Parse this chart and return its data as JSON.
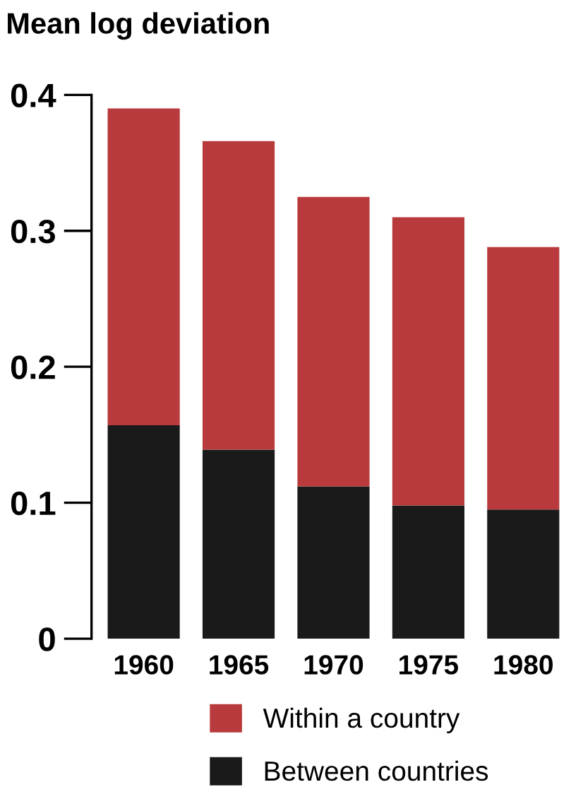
{
  "chart_data": {
    "type": "bar",
    "title": "Mean log deviation",
    "stacked": true,
    "categories": [
      "1960",
      "1965",
      "1970",
      "1975",
      "1980"
    ],
    "series": [
      {
        "name": "Between countries",
        "color": "#1a1a1a",
        "values": [
          0.157,
          0.139,
          0.112,
          0.098,
          0.095
        ]
      },
      {
        "name": "Within a country",
        "color": "#b93a3c",
        "values": [
          0.233,
          0.227,
          0.213,
          0.212,
          0.193
        ]
      }
    ],
    "ylim": [
      0,
      0.4
    ],
    "yticks": [
      {
        "value": 0,
        "label": "0"
      },
      0.1,
      0.2,
      0.3,
      0.4
    ],
    "grid": false,
    "legend": "bottom"
  }
}
